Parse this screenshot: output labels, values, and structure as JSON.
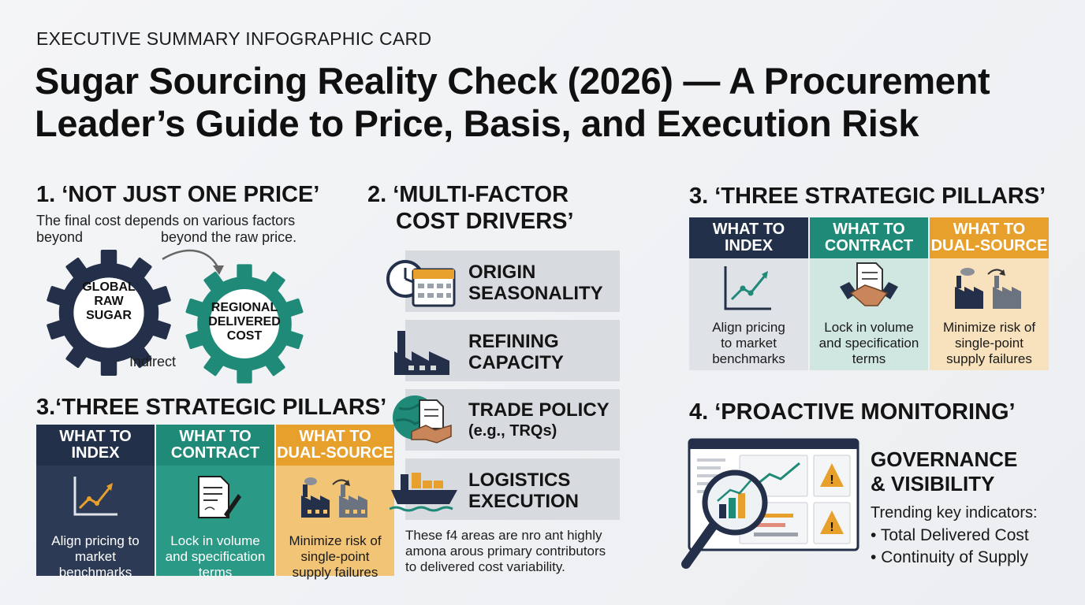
{
  "header": {
    "eyebrow": "EXECUTIVE SUMMARY INFOGRAPHIC CARD",
    "title_line1": "Sugar Sourcing Reality Check (2026) — A Procurement",
    "title_line2": "Leader’s Guide to Price, Basis, and Execution Risk"
  },
  "section1": {
    "heading": "1. ‘NOT JUST ONE PRICE’",
    "desc_line1": "The final cost depends on various factors",
    "desc_line2a": "beyond",
    "desc_line2b": "beyond the raw price.",
    "gear_left": [
      "GLOBAL",
      "RAW",
      "SUGAR"
    ],
    "gear_right": [
      "REGIONAL",
      "DELIVERED",
      "COST"
    ],
    "connector_label": "Indirect"
  },
  "section2": {
    "heading_line1": "2. ‘MULTI-FACTOR",
    "heading_line2": "COST DRIVERS’",
    "drivers": [
      {
        "line1": "ORIGIN",
        "line2": "SEASONALITY",
        "icon": "clock-calendar-icon"
      },
      {
        "line1": "REFINING",
        "line2": "CAPACITY",
        "icon": "factory-icon"
      },
      {
        "line1": "TRADE POLICY",
        "line2": "(e.g., TRQs)",
        "icon": "globe-handshake-icon"
      },
      {
        "line1": "LOGISTICS",
        "line2": "EXECUTION",
        "icon": "cargo-ship-icon"
      }
    ],
    "footnote_line1": "These f4 areas are nro ant highly",
    "footnote_line2": "amona arous primary contributors",
    "footnote_line3": "to delivered cost variability."
  },
  "pillars_left": {
    "heading": "3.‘THREE STRATEGIC PILLARS’",
    "columns": [
      {
        "h1": "WHAT TO",
        "h2": "INDEX",
        "t1": "Align pricing to",
        "t2": "market",
        "t3": "benchmarks",
        "icon": "trend-chart-icon"
      },
      {
        "h1": "WHAT TO",
        "h2": "CONTRACT",
        "t1": "Lock in volume",
        "t2": "and specification",
        "t3": "terms",
        "icon": "contract-pen-icon"
      },
      {
        "h1": "WHAT TO",
        "h2": "DUAL-SOURCE",
        "t1": "Minimize risk of",
        "t2": "single-point",
        "t3": "supply failures",
        "icon": "two-factories-icon"
      }
    ]
  },
  "pillars_right": {
    "heading": "3. ‘THREE STRATEGIC PILLARS’",
    "columns": [
      {
        "h1": "WHAT TO",
        "h2": "INDEX",
        "t1": "Align pricing",
        "t2": "to market",
        "t3": "benchmarks",
        "icon": "trend-chart-icon"
      },
      {
        "h1": "WHAT TO",
        "h2": "CONTRACT",
        "t1": "Lock in volume",
        "t2": "and specification",
        "t3": "terms",
        "icon": "handshake-contract-icon"
      },
      {
        "h1": "WHAT TO",
        "h2": "DUAL-SOURCE",
        "t1": "Minimize risk of",
        "t2": "single-point",
        "t3": "supply failures",
        "icon": "two-factories-icon"
      }
    ]
  },
  "section4": {
    "heading": "4. ‘PROACTIVE MONITORING’",
    "gov_line1": "GOVERNANCE",
    "gov_line2": "& VISIBILITY",
    "trend_label": "Trending key indicators:",
    "bullets": [
      "Total Delivered Cost",
      "Continuity of Supply"
    ]
  },
  "colors": {
    "navy": "#23304a",
    "teal": "#1f8a78",
    "orange": "#e8a02c",
    "navy_body": "#2c3a55",
    "teal_body": "#2a9a86",
    "orange_body": "#f2c476"
  }
}
